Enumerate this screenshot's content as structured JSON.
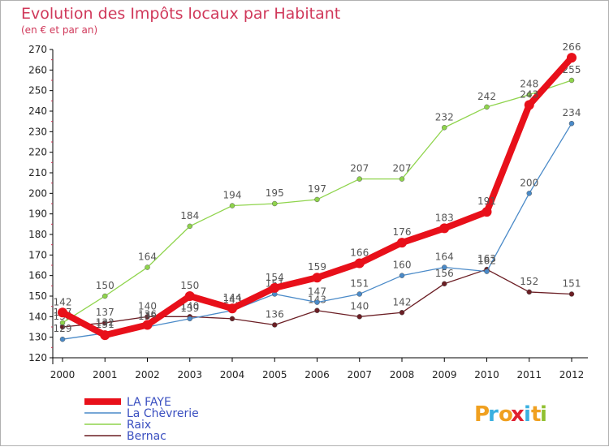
{
  "chart_data": {
    "type": "line",
    "title": "Evolution des Impôts locaux par Habitant",
    "subtitle": "(en € et par an)",
    "x": [
      2000,
      2001,
      2002,
      2003,
      2004,
      2005,
      2006,
      2007,
      2008,
      2009,
      2010,
      2011,
      2012
    ],
    "ylim": [
      120,
      270
    ],
    "yticks": [
      120,
      130,
      140,
      150,
      160,
      170,
      180,
      190,
      200,
      210,
      220,
      230,
      240,
      250,
      260,
      270
    ],
    "series": [
      {
        "name": "Bernac",
        "color": "#6b1e24",
        "values": [
          135,
          137,
          140,
          140,
          139,
          136,
          143,
          140,
          142,
          156,
          163,
          152,
          151
        ],
        "labels": [
          "135",
          "137",
          "140",
          "140",
          "",
          "136",
          "143",
          "140",
          "142",
          "156",
          "163",
          "152",
          "151"
        ]
      },
      {
        "name": "Raix",
        "color": "#8fd44c",
        "values": [
          137,
          150,
          164,
          184,
          194,
          195,
          197,
          207,
          207,
          232,
          242,
          248,
          255
        ],
        "labels": [
          "137",
          "150",
          "164",
          "184",
          "194",
          "195",
          "197",
          "207",
          "207",
          "232",
          "242",
          "248",
          "255"
        ]
      },
      {
        "name": "La Chèvrerie",
        "color": "#4a8ac8",
        "values": [
          129,
          132,
          135,
          139,
          143,
          151,
          147,
          151,
          160,
          164,
          162,
          200,
          234
        ],
        "labels": [
          "129",
          "132",
          "135",
          "139",
          "143",
          "151",
          "147",
          "151",
          "160",
          "164",
          "162",
          "200",
          "234"
        ]
      },
      {
        "name": "LA FAYE",
        "color": "#e8101a",
        "values": [
          142,
          131,
          136,
          150,
          144,
          154,
          159,
          166,
          176,
          183,
          191,
          243,
          266
        ],
        "labels": [
          "142",
          "131",
          "136",
          "150",
          "144",
          "154",
          "159",
          "166",
          "176",
          "183",
          "191",
          "243",
          "266"
        ]
      }
    ],
    "legend": [
      {
        "name": "LA FAYE",
        "color": "#e8101a"
      },
      {
        "name": "La Chèvrerie",
        "color": "#4a8ac8"
      },
      {
        "name": "Raix",
        "color": "#8fd44c"
      },
      {
        "name": "Bernac",
        "color": "#6b1e24"
      }
    ],
    "grid": false
  },
  "brand": {
    "letters": [
      "P",
      "r",
      "o",
      "x",
      "i",
      "t",
      "i"
    ],
    "colors": [
      "#f0a020",
      "#3ab0e0",
      "#f0a020",
      "#e02030",
      "#3ab0e0",
      "#f0a020",
      "#90c030"
    ]
  }
}
